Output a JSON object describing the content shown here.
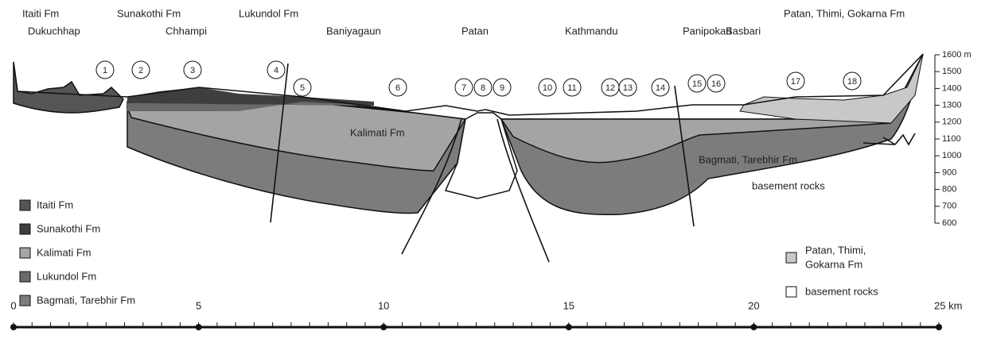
{
  "places": [
    "Itaiti Fm",
    "Dukuchhap",
    "Sunakothi Fm",
    "Chhampi",
    "Lukundol Fm",
    "Baniyagaun",
    "Patan",
    "Kathmandu",
    "Panipokari",
    "Basbari",
    "Patan, Thimi, Gokarna Fm"
  ],
  "sites": [
    "1",
    "2",
    "3",
    "4",
    "5",
    "6",
    "7",
    "8",
    "9",
    "10",
    "11",
    "12",
    "13",
    "14",
    "15",
    "16",
    "17",
    "18"
  ],
  "formations": [
    "Kalimati Fm",
    "Bagmati, Tarebhir Fm",
    "basement rocks"
  ],
  "legend_left": [
    "Itaiti Fm",
    "Sunakothi Fm",
    "Kalimati Fm",
    "Lukundol Fm",
    "Bagmati, Tarebhir Fm"
  ],
  "legend_right": [
    {
      "lines": [
        "Patan, Thimi,",
        "Gokarna Fm"
      ]
    },
    {
      "lines": [
        "basement rocks"
      ]
    }
  ],
  "elevation_ticks": [
    "1600 m",
    "1500",
    "1400",
    "1300",
    "1200",
    "1100",
    "1000",
    "900",
    "800",
    "700",
    "600"
  ],
  "distance_ticks": [
    "0",
    "5",
    "10",
    "15",
    "20",
    "25 km"
  ]
}
